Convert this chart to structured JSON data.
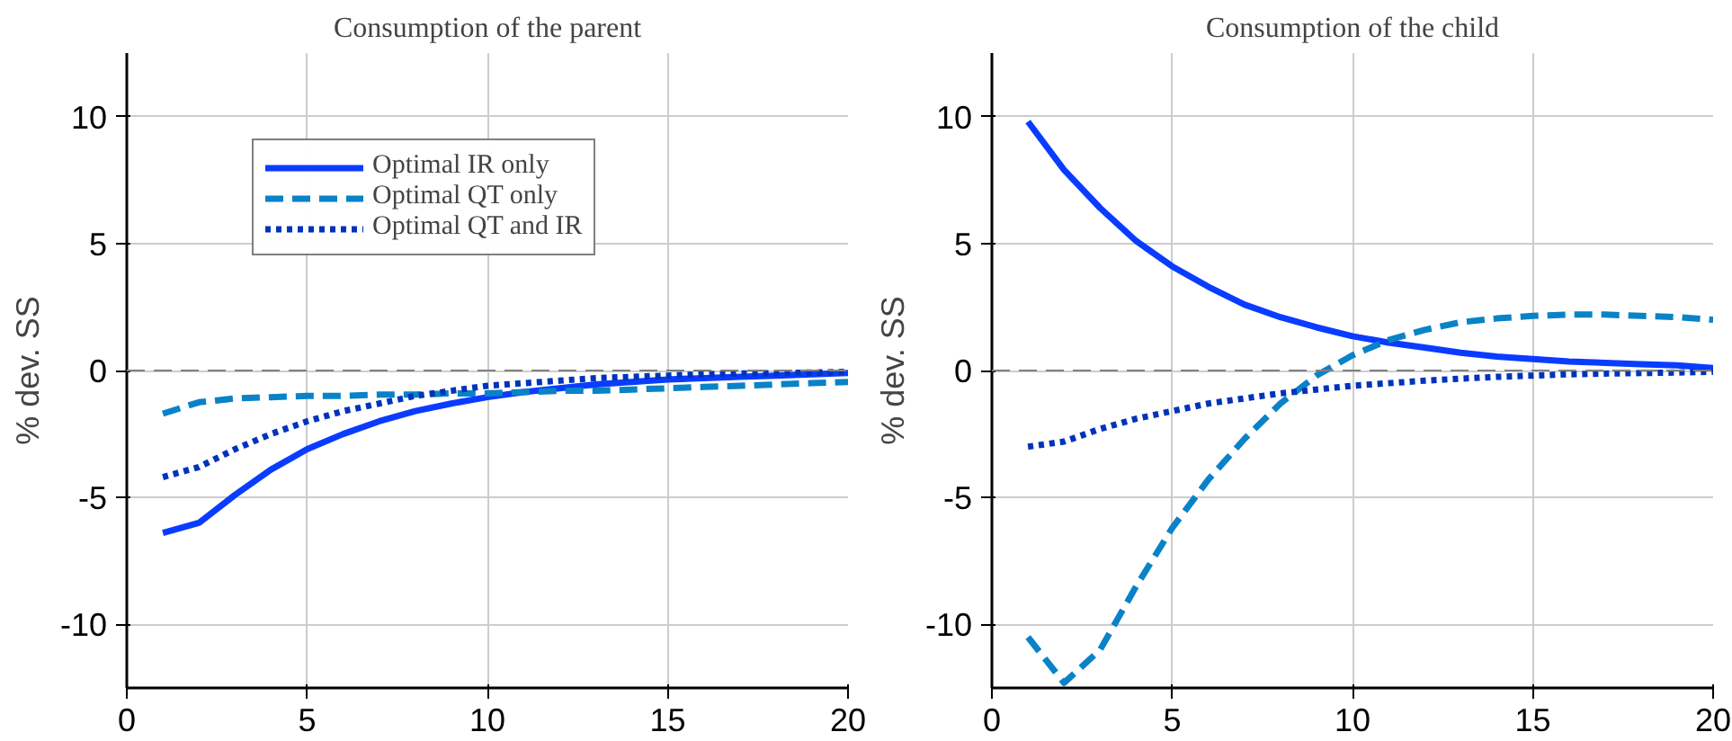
{
  "chart_data": [
    {
      "type": "line",
      "title": "Consumption of the parent",
      "ylabel": "% dev. SS",
      "x": [
        1,
        2,
        3,
        4,
        5,
        6,
        7,
        8,
        9,
        10,
        11,
        12,
        13,
        14,
        15,
        16,
        17,
        18,
        19,
        20
      ],
      "series": [
        {
          "name": "Optimal IR only",
          "color": "#0a3cff",
          "line_style": "solid",
          "values": [
            -6.4,
            -6.0,
            -4.9,
            -3.9,
            -3.1,
            -2.5,
            -2.0,
            -1.6,
            -1.3,
            -1.05,
            -0.85,
            -0.7,
            -0.55,
            -0.45,
            -0.35,
            -0.3,
            -0.25,
            -0.2,
            -0.15,
            -0.1
          ]
        },
        {
          "name": "Optimal QT only",
          "color": "#0a82c8",
          "line_style": "dashed",
          "values": [
            -1.7,
            -1.25,
            -1.1,
            -1.05,
            -1.0,
            -1.0,
            -0.95,
            -0.95,
            -0.9,
            -0.9,
            -0.85,
            -0.8,
            -0.8,
            -0.75,
            -0.7,
            -0.65,
            -0.6,
            -0.55,
            -0.5,
            -0.45
          ]
        },
        {
          "name": "Optimal QT and IR",
          "color": "#0033bb",
          "line_style": "dotted",
          "values": [
            -4.2,
            -3.8,
            -3.1,
            -2.5,
            -2.0,
            -1.6,
            -1.3,
            -1.0,
            -0.8,
            -0.6,
            -0.5,
            -0.4,
            -0.3,
            -0.25,
            -0.2,
            -0.15,
            -0.12,
            -0.1,
            -0.08,
            -0.05
          ]
        }
      ],
      "xlim": [
        0,
        20
      ],
      "xticks": [
        0,
        5,
        10,
        15,
        20
      ],
      "ylim": [
        -12.5,
        12.5
      ],
      "yticks": [
        -10,
        -5,
        0,
        5,
        10
      ],
      "ref_lines": [
        {
          "axis": "y",
          "value": 0,
          "color": "#808080",
          "line_style": "dashed"
        }
      ],
      "grid": true,
      "legend": "top left"
    },
    {
      "type": "line",
      "title": "Consumption of the child",
      "ylabel": "% dev. SS",
      "x": [
        1,
        2,
        3,
        4,
        5,
        6,
        7,
        8,
        9,
        10,
        11,
        12,
        13,
        14,
        15,
        16,
        17,
        18,
        19,
        20
      ],
      "series": [
        {
          "color": "#0a3cff",
          "line_style": "solid",
          "values": [
            9.8,
            7.9,
            6.4,
            5.1,
            4.1,
            3.3,
            2.6,
            2.1,
            1.7,
            1.35,
            1.1,
            0.9,
            0.7,
            0.55,
            0.45,
            0.35,
            0.3,
            0.25,
            0.2,
            0.1
          ]
        },
        {
          "color": "#0a82c8",
          "line_style": "dashed",
          "values": [
            -10.5,
            -12.3,
            -11.0,
            -8.5,
            -6.2,
            -4.3,
            -2.7,
            -1.3,
            -0.2,
            0.6,
            1.2,
            1.6,
            1.9,
            2.05,
            2.15,
            2.2,
            2.2,
            2.15,
            2.1,
            2.0
          ]
        },
        {
          "color": "#0033bb",
          "line_style": "dotted",
          "values": [
            -3.0,
            -2.8,
            -2.3,
            -1.9,
            -1.6,
            -1.3,
            -1.1,
            -0.9,
            -0.75,
            -0.6,
            -0.5,
            -0.4,
            -0.32,
            -0.25,
            -0.2,
            -0.15,
            -0.12,
            -0.1,
            -0.08,
            -0.05
          ]
        }
      ],
      "xlim": [
        0,
        20
      ],
      "xticks": [
        0,
        5,
        10,
        15,
        20
      ],
      "ylim": [
        -12.5,
        12.5
      ],
      "yticks": [
        -10,
        -5,
        0,
        5,
        10
      ],
      "ref_lines": [
        {
          "axis": "y",
          "value": 0,
          "color": "#808080",
          "line_style": "dashed"
        }
      ],
      "grid": true,
      "legend": false
    }
  ]
}
